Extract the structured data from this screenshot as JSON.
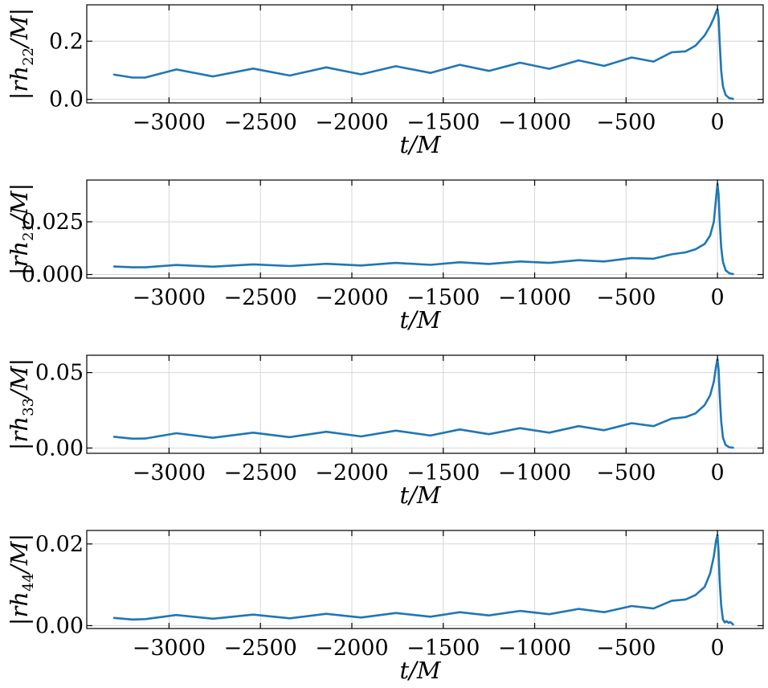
{
  "chart_data": [
    {
      "type": "line",
      "id": "h22",
      "xlabel": "t/M",
      "ylabel": {
        "pre": "|rh",
        "sub": "22",
        "post": "/M|"
      },
      "xlim": [
        -3450,
        250
      ],
      "ylim": [
        -0.012,
        0.325
      ],
      "xticks": [
        -3000,
        -2500,
        -2000,
        -1500,
        -1000,
        -500,
        0
      ],
      "xtick_labels": [
        "−3000",
        "−2500",
        "−2000",
        "−1500",
        "−1000",
        "−500",
        "0"
      ],
      "yticks": [
        0.0,
        0.2
      ],
      "ytick_labels": [
        "0.0",
        "0.2"
      ],
      "grid": true,
      "color": "#1f77b4",
      "x": [
        -3300,
        -3200,
        -3130,
        -2960,
        -2760,
        -2540,
        -2340,
        -2140,
        -1950,
        -1760,
        -1570,
        -1410,
        -1250,
        -1080,
        -920,
        -760,
        -620,
        -470,
        -350,
        -250,
        -175,
        -120,
        -70,
        -40,
        -20,
        -8,
        0,
        6,
        12,
        20,
        30,
        45,
        65,
        85
      ],
      "y": [
        0.085,
        0.075,
        0.075,
        0.103,
        0.079,
        0.106,
        0.082,
        0.11,
        0.086,
        0.114,
        0.091,
        0.119,
        0.098,
        0.126,
        0.105,
        0.134,
        0.115,
        0.144,
        0.13,
        0.162,
        0.165,
        0.185,
        0.22,
        0.252,
        0.28,
        0.3,
        0.31,
        0.28,
        0.2,
        0.1,
        0.045,
        0.015,
        0.004,
        0.002
      ]
    },
    {
      "type": "line",
      "id": "h21",
      "xlabel": "t/M",
      "ylabel": {
        "pre": "|rh",
        "sub": "21",
        "post": "/M|"
      },
      "xlim": [
        -3450,
        250
      ],
      "ylim": [
        -0.0017,
        0.0448
      ],
      "xticks": [
        -3000,
        -2500,
        -2000,
        -1500,
        -1000,
        -500,
        0
      ],
      "xtick_labels": [
        "−3000",
        "−2500",
        "−2000",
        "−1500",
        "−1000",
        "−500",
        "0"
      ],
      "yticks": [
        0.0,
        0.025
      ],
      "ytick_labels": [
        "0.000",
        "0.025"
      ],
      "grid": true,
      "color": "#1f77b4",
      "x": [
        -3300,
        -3200,
        -3130,
        -2960,
        -2760,
        -2540,
        -2340,
        -2140,
        -1950,
        -1760,
        -1570,
        -1410,
        -1250,
        -1080,
        -920,
        -760,
        -620,
        -470,
        -350,
        -250,
        -175,
        -120,
        -70,
        -40,
        -20,
        -8,
        0,
        6,
        12,
        20,
        30,
        45,
        65,
        85
      ],
      "y": [
        0.0038,
        0.0034,
        0.0034,
        0.0045,
        0.0037,
        0.0048,
        0.004,
        0.0051,
        0.0043,
        0.0055,
        0.0046,
        0.0058,
        0.005,
        0.0062,
        0.0055,
        0.0068,
        0.0062,
        0.0078,
        0.0075,
        0.0096,
        0.0105,
        0.012,
        0.0145,
        0.0185,
        0.025,
        0.036,
        0.043,
        0.038,
        0.026,
        0.013,
        0.006,
        0.002,
        0.0006,
        0.0002
      ]
    },
    {
      "type": "line",
      "id": "h33",
      "xlabel": "t/M",
      "ylabel": {
        "pre": "|rh",
        "sub": "33",
        "post": "/M|"
      },
      "xlim": [
        -3450,
        250
      ],
      "ylim": [
        -0.0035,
        0.0615
      ],
      "xticks": [
        -3000,
        -2500,
        -2000,
        -1500,
        -1000,
        -500,
        0
      ],
      "xtick_labels": [
        "−3000",
        "−2500",
        "−2000",
        "−1500",
        "−1000",
        "−500",
        "0"
      ],
      "yticks": [
        0.0,
        0.05
      ],
      "ytick_labels": [
        "0.00",
        "0.05"
      ],
      "grid": true,
      "color": "#1f77b4",
      "x": [
        -3300,
        -3200,
        -3130,
        -2960,
        -2760,
        -2540,
        -2340,
        -2140,
        -1950,
        -1760,
        -1570,
        -1410,
        -1250,
        -1080,
        -920,
        -760,
        -620,
        -470,
        -350,
        -250,
        -175,
        -120,
        -70,
        -40,
        -20,
        -8,
        0,
        6,
        12,
        20,
        30,
        45,
        65,
        85
      ],
      "y": [
        0.0075,
        0.0062,
        0.0063,
        0.0098,
        0.0068,
        0.0102,
        0.0072,
        0.0108,
        0.0077,
        0.0115,
        0.0083,
        0.0123,
        0.0092,
        0.0132,
        0.0102,
        0.0145,
        0.0118,
        0.0165,
        0.0145,
        0.0195,
        0.0205,
        0.023,
        0.0285,
        0.035,
        0.044,
        0.054,
        0.059,
        0.052,
        0.036,
        0.018,
        0.007,
        0.002,
        0.0005,
        0.0002
      ]
    },
    {
      "type": "line",
      "id": "h44",
      "xlabel": "t/M",
      "ylabel": {
        "pre": "|rh",
        "sub": "44",
        "post": "/M|"
      },
      "xlim": [
        -3450,
        250
      ],
      "ylim": [
        -0.0007,
        0.0233
      ],
      "xticks": [
        -3000,
        -2500,
        -2000,
        -1500,
        -1000,
        -500,
        0
      ],
      "xtick_labels": [
        "−3000",
        "−2500",
        "−2000",
        "−1500",
        "−1000",
        "−500",
        "0"
      ],
      "yticks": [
        0.0,
        0.02
      ],
      "ytick_labels": [
        "0.00",
        "0.02"
      ],
      "grid": true,
      "color": "#1f77b4",
      "x": [
        -3300,
        -3200,
        -3130,
        -2960,
        -2760,
        -2540,
        -2340,
        -2140,
        -1950,
        -1760,
        -1570,
        -1410,
        -1250,
        -1080,
        -920,
        -760,
        -620,
        -470,
        -350,
        -250,
        -175,
        -120,
        -70,
        -40,
        -20,
        -8,
        0,
        6,
        12,
        20,
        30,
        40,
        50,
        60,
        70,
        85
      ],
      "y": [
        0.0019,
        0.0015,
        0.0016,
        0.0026,
        0.0017,
        0.0027,
        0.0018,
        0.0029,
        0.002,
        0.0031,
        0.0022,
        0.0033,
        0.0025,
        0.0036,
        0.0028,
        0.0041,
        0.0033,
        0.0048,
        0.0042,
        0.0061,
        0.0064,
        0.0075,
        0.0095,
        0.0128,
        0.017,
        0.0208,
        0.0222,
        0.018,
        0.011,
        0.005,
        0.0015,
        0.0008,
        0.0011,
        0.0007,
        0.0009,
        0.0003
      ]
    }
  ]
}
